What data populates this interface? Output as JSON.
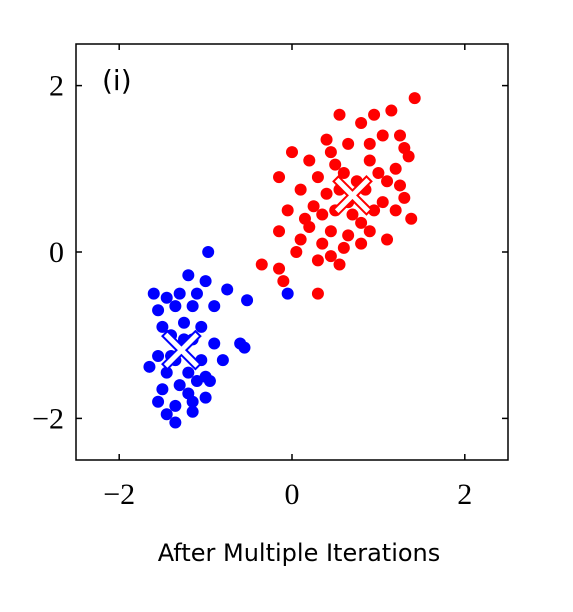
{
  "chart_data": {
    "type": "scatter",
    "annotation": "(i)",
    "xlabel": "After Multiple Iterations",
    "xlim": [
      -2.5,
      2.5
    ],
    "ylim": [
      -2.5,
      2.5
    ],
    "xticks": [
      {
        "value": -2,
        "label": "−2"
      },
      0,
      2
    ],
    "yticks": [
      {
        "value": -2,
        "label": "−2"
      },
      0,
      2
    ],
    "series": [
      {
        "color": "#ff0000",
        "x": [
          1.42,
          0.55,
          0.95,
          1.15,
          0.8,
          1.05,
          1.25,
          0.4,
          0.65,
          1.3,
          0.0,
          0.2,
          0.5,
          0.9,
          1.2,
          1.35,
          -0.15,
          0.3,
          0.6,
          1.1,
          1.25,
          0.1,
          0.4,
          0.85,
          1.05,
          0.25,
          0.5,
          0.7,
          0.95,
          1.2,
          1.38,
          -0.05,
          0.2,
          0.45,
          0.65,
          0.9,
          1.1,
          -0.15,
          0.1,
          0.35,
          0.6,
          0.8,
          0.05,
          0.45,
          0.3,
          0.55,
          -0.35,
          -0.15,
          -0.1,
          0.3,
          0.75,
          0.55,
          1.0,
          0.35,
          0.8,
          1.3,
          0.15,
          0.65,
          0.9,
          0.45
        ],
        "y": [
          1.85,
          1.65,
          1.65,
          1.7,
          1.55,
          1.4,
          1.4,
          1.35,
          1.3,
          1.25,
          1.2,
          1.1,
          1.05,
          1.1,
          1.0,
          1.15,
          0.9,
          0.9,
          0.95,
          0.85,
          0.8,
          0.75,
          0.7,
          0.75,
          0.6,
          0.55,
          0.5,
          0.45,
          0.5,
          0.5,
          0.4,
          0.5,
          0.3,
          0.25,
          0.2,
          0.25,
          0.15,
          0.25,
          0.15,
          0.1,
          0.05,
          0.1,
          0.0,
          -0.05,
          -0.1,
          -0.15,
          -0.15,
          -0.2,
          -0.35,
          -0.5,
          0.85,
          0.75,
          0.95,
          0.45,
          0.35,
          0.65,
          0.4,
          0.6,
          1.3,
          1.2
        ]
      },
      {
        "color": "#0000ff",
        "x": [
          -0.97,
          -1.2,
          -1.6,
          -1.45,
          -1.3,
          -1.0,
          -1.1,
          -0.75,
          -0.52,
          -0.05,
          -1.55,
          -1.35,
          -1.15,
          -0.9,
          -1.5,
          -1.25,
          -1.05,
          -1.4,
          -1.15,
          -0.9,
          -0.6,
          -0.55,
          -1.55,
          -1.35,
          -1.05,
          -0.8,
          -1.45,
          -1.2,
          -1.0,
          -1.65,
          -1.3,
          -1.1,
          -0.95,
          -1.5,
          -1.2,
          -1.55,
          -1.35,
          -1.15,
          -1.0,
          -1.45,
          -1.15,
          -1.35,
          -1.4,
          -1.25
        ],
        "y": [
          0.0,
          -0.28,
          -0.5,
          -0.55,
          -0.5,
          -0.35,
          -0.5,
          -0.45,
          -0.58,
          -0.5,
          -0.7,
          -0.65,
          -0.65,
          -0.65,
          -0.9,
          -0.85,
          -0.9,
          -1.0,
          -1.05,
          -1.1,
          -1.1,
          -1.15,
          -1.25,
          -1.3,
          -1.3,
          -1.3,
          -1.45,
          -1.45,
          -1.5,
          -1.38,
          -1.6,
          -1.55,
          -1.55,
          -1.65,
          -1.7,
          -1.8,
          -1.85,
          -1.8,
          -1.75,
          -1.95,
          -1.92,
          -2.05,
          -1.25,
          -1.05
        ]
      },
      {
        "color": "#ffffff",
        "marker": "x",
        "x": [
          0.7,
          -1.28
        ],
        "y": [
          0.68,
          -1.18
        ]
      }
    ]
  }
}
